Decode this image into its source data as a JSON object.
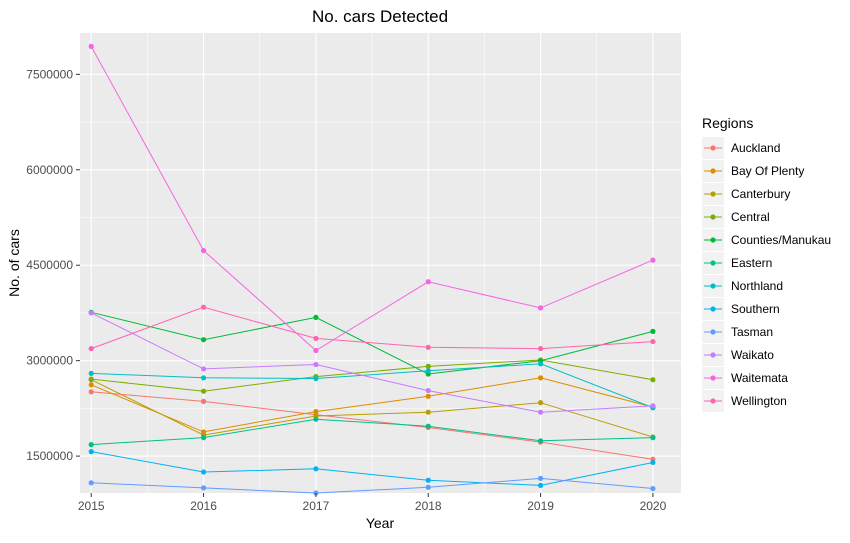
{
  "chart_data": {
    "type": "line",
    "title": "No. cars Detected",
    "xlabel": "Year",
    "ylabel": "No. of cars",
    "x": [
      2015,
      2016,
      2017,
      2018,
      2019,
      2020
    ],
    "xlim": [
      2014.9,
      2020.25
    ],
    "ylim": [
      920000,
      8150000
    ],
    "yticks": [
      1500000,
      3000000,
      4500000,
      6000000,
      7500000
    ],
    "ytick_labels": [
      "1500000",
      "3000000",
      "4500000",
      "6000000",
      "7500000"
    ],
    "xtick_labels": [
      "2015",
      "2016",
      "2017",
      "2018",
      "2019",
      "2020"
    ],
    "grid": true,
    "legend_title": "Regions",
    "legend_position": "right",
    "series": [
      {
        "name": "Auckland",
        "color": "#F8766D",
        "values": [
          2510000,
          2360000,
          2150000,
          1950000,
          1720000,
          1450000
        ]
      },
      {
        "name": "Bay Of Plenty",
        "color": "#DE8C00",
        "values": [
          2620000,
          1880000,
          2200000,
          2440000,
          2730000,
          2270000
        ]
      },
      {
        "name": "Canterbury",
        "color": "#B79F00",
        "values": [
          2700000,
          1830000,
          2130000,
          2190000,
          2340000,
          1800000
        ]
      },
      {
        "name": "Central",
        "color": "#7CAE00",
        "values": [
          2710000,
          2520000,
          2750000,
          2910000,
          3010000,
          2700000
        ]
      },
      {
        "name": "Counties/Manukau",
        "color": "#00BA38",
        "values": [
          3760000,
          3330000,
          3680000,
          2790000,
          3000000,
          3460000
        ]
      },
      {
        "name": "Eastern",
        "color": "#00C08B",
        "values": [
          1680000,
          1790000,
          2080000,
          1970000,
          1740000,
          1790000
        ]
      },
      {
        "name": "Northland",
        "color": "#00BFC4",
        "values": [
          2800000,
          2730000,
          2720000,
          2840000,
          2950000,
          2260000
        ]
      },
      {
        "name": "Southern",
        "color": "#00B4F0",
        "values": [
          1570000,
          1250000,
          1300000,
          1120000,
          1040000,
          1400000
        ]
      },
      {
        "name": "Tasman",
        "color": "#619CFF",
        "values": [
          1080000,
          1000000,
          920000,
          1010000,
          1150000,
          990000
        ]
      },
      {
        "name": "Waikato",
        "color": "#C77CFF",
        "values": [
          3750000,
          2870000,
          2940000,
          2530000,
          2190000,
          2290000
        ]
      },
      {
        "name": "Waitemata",
        "color": "#F564E3",
        "values": [
          7940000,
          4730000,
          3160000,
          4240000,
          3830000,
          4580000
        ]
      },
      {
        "name": "Wellington",
        "color": "#FF64B0",
        "values": [
          3190000,
          3840000,
          3350000,
          3210000,
          3190000,
          3300000
        ]
      }
    ]
  }
}
